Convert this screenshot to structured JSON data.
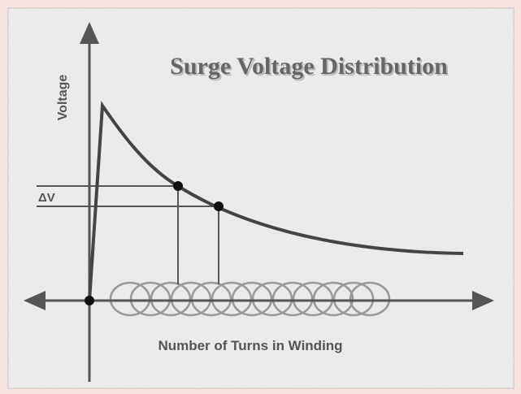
{
  "diagram": {
    "title": "Surge Voltage Distribution",
    "y_axis_label": "Voltage",
    "x_axis_label": "Number of Turns in Winding",
    "delta_label": "ΔV"
  }
}
